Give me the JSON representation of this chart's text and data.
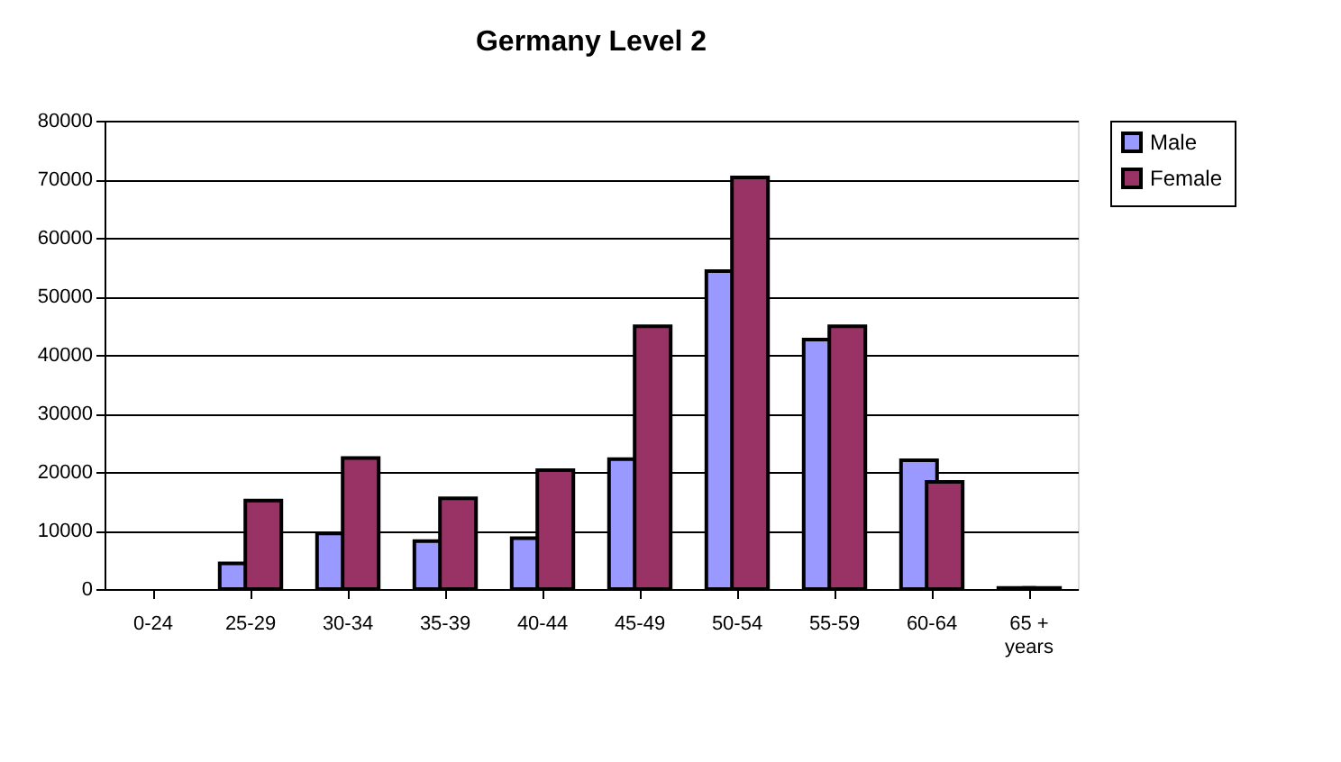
{
  "chart_data": {
    "type": "bar",
    "title": "Germany Level 2",
    "categories": [
      "0-24",
      "25-29",
      "30-34",
      "35-39",
      "40-44",
      "45-49",
      "50-54",
      "55-59",
      "60-64",
      "65 +\nyears"
    ],
    "series": [
      {
        "name": "Male",
        "color": "#9999ff",
        "values": [
          null,
          4400,
          9500,
          8200,
          8700,
          22200,
          54300,
          42600,
          22000,
          200
        ]
      },
      {
        "name": "Female",
        "color": "#993366",
        "values": [
          null,
          15100,
          22400,
          15500,
          20300,
          44900,
          70300,
          44900,
          18300,
          200
        ]
      }
    ],
    "ylim": [
      0,
      80000
    ],
    "yticks": [
      0,
      10000,
      20000,
      30000,
      40000,
      50000,
      60000,
      70000,
      80000
    ],
    "grid": "y",
    "legend": "right"
  }
}
